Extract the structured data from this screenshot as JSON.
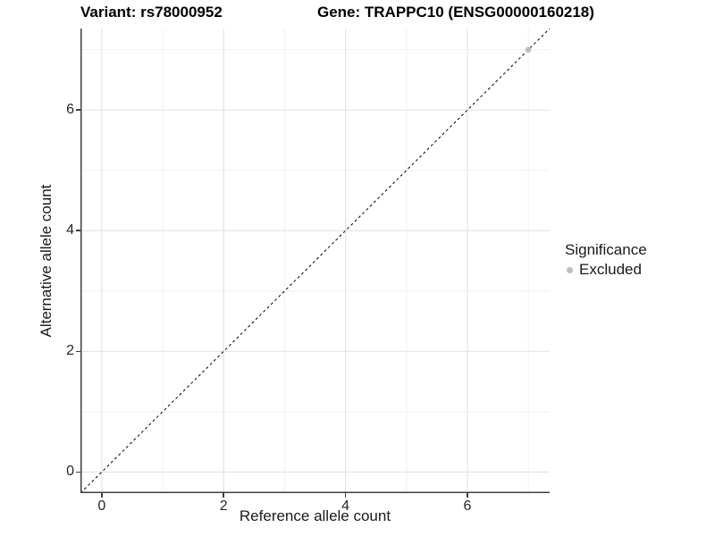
{
  "chart_data": {
    "type": "scatter",
    "titles": {
      "left": "Variant: rs78000952",
      "right": "Gene: TRAPPC10 (ENSG00000160218)"
    },
    "xlabel": "Reference allele count",
    "ylabel": "Alternative allele count",
    "xlim": [
      -0.35,
      7.35
    ],
    "ylim": [
      -0.35,
      7.35
    ],
    "xticks": [
      0,
      2,
      4,
      6
    ],
    "yticks": [
      0,
      2,
      4,
      6
    ],
    "xticks_minor": [
      1,
      3,
      5,
      7
    ],
    "yticks_minor": [
      1,
      3,
      5,
      7
    ],
    "grid": "major+minor",
    "reference_line": {
      "type": "identity",
      "style": "dashed",
      "color": "#000000"
    },
    "series": [
      {
        "name": "Excluded",
        "color": "#bebebe",
        "points": [
          {
            "x": 7,
            "y": 7
          }
        ]
      }
    ],
    "legend": {
      "title": "Significance",
      "position": "right",
      "items": [
        {
          "label": "Excluded",
          "color": "#bebebe"
        }
      ]
    }
  },
  "colors": {
    "background": "#ffffff",
    "grid_major": "#e4e4e4",
    "grid_minor": "#f0f0f0",
    "axis_line": "#404040",
    "tick_text": "#262626",
    "title_text": "#000000",
    "point": "#bebebe"
  }
}
